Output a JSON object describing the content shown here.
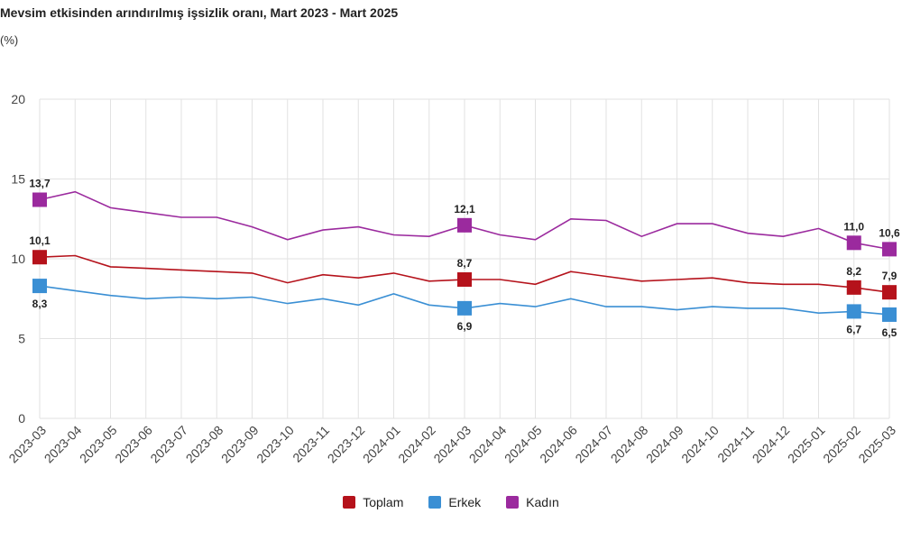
{
  "chart_data": {
    "type": "line",
    "title": "Mevsim etkisinden arındırılmış işsizlik oranı, Mart 2023 - Mart 2025",
    "unit_label": "(%)",
    "ylim": [
      0,
      20
    ],
    "yticks": [
      "0",
      "5",
      "10",
      "15",
      "20"
    ],
    "grid": true,
    "legend_position": "bottom",
    "categories": [
      "2023-03",
      "2023-04",
      "2023-05",
      "2023-06",
      "2023-07",
      "2023-08",
      "2023-09",
      "2023-10",
      "2023-11",
      "2023-12",
      "2024-01",
      "2024-02",
      "2024-03",
      "2024-04",
      "2024-05",
      "2024-06",
      "2024-07",
      "2024-08",
      "2024-09",
      "2024-10",
      "2024-11",
      "2024-12",
      "2025-01",
      "2025-02",
      "2025-03"
    ],
    "series": [
      {
        "name": "Toplam",
        "color": "#b5121b",
        "values": [
          10.1,
          10.2,
          9.5,
          9.4,
          9.3,
          9.2,
          9.1,
          8.5,
          9.0,
          8.8,
          9.1,
          8.6,
          8.7,
          8.7,
          8.4,
          9.2,
          8.9,
          8.6,
          8.7,
          8.8,
          8.5,
          8.4,
          8.4,
          8.2,
          7.9
        ],
        "labels": {
          "0": "10,1",
          "12": "8,7",
          "23": "8,2",
          "24": "7,9"
        }
      },
      {
        "name": "Erkek",
        "color": "#3a8fd4",
        "values": [
          8.3,
          8.0,
          7.7,
          7.5,
          7.6,
          7.5,
          7.6,
          7.2,
          7.5,
          7.1,
          7.8,
          7.1,
          6.9,
          7.2,
          7.0,
          7.5,
          7.0,
          7.0,
          6.8,
          7.0,
          6.9,
          6.9,
          6.6,
          6.7,
          6.5
        ],
        "labels": {
          "0": "8,3",
          "12": "6,9",
          "23": "6,7",
          "24": "6,5"
        }
      },
      {
        "name": "Kadın",
        "color": "#9b2a9e",
        "values": [
          13.7,
          14.2,
          13.2,
          12.9,
          12.6,
          12.6,
          12.0,
          11.2,
          11.8,
          12.0,
          11.5,
          11.4,
          12.1,
          11.5,
          11.2,
          12.5,
          12.4,
          11.4,
          12.2,
          12.2,
          11.6,
          11.4,
          11.9,
          11.0,
          10.6
        ],
        "labels": {
          "0": "13,7",
          "12": "12,1",
          "23": "11,0",
          "24": "10,6"
        }
      }
    ]
  }
}
